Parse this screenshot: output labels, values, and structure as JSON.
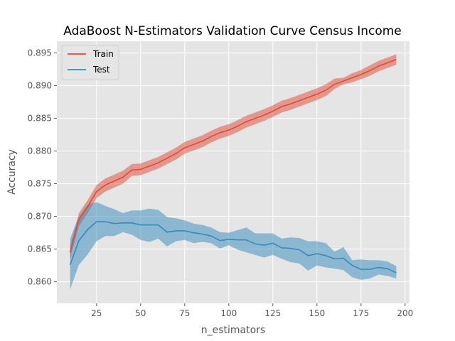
{
  "chart_data": {
    "type": "line",
    "title": "AdaBoost N-Estimators Validation Curve Census Income",
    "xlabel": "n_estimators",
    "ylabel": "Accuracy",
    "xlim": [
      2.5,
      202.5
    ],
    "ylim": [
      0.8567,
      0.8968
    ],
    "xticks": [
      25,
      50,
      75,
      100,
      125,
      150,
      175,
      200
    ],
    "yticks": [
      0.86,
      0.865,
      0.87,
      0.875,
      0.88,
      0.885,
      0.89,
      0.895
    ],
    "xtick_labels": [
      "25",
      "50",
      "75",
      "100",
      "125",
      "150",
      "175",
      "200"
    ],
    "ytick_labels": [
      "0.860",
      "0.865",
      "0.870",
      "0.875",
      "0.880",
      "0.885",
      "0.890",
      "0.895"
    ],
    "grid": true,
    "legend": "top-left",
    "x": [
      10,
      15,
      20,
      25,
      30,
      35,
      40,
      45,
      50,
      55,
      60,
      65,
      70,
      75,
      80,
      85,
      90,
      95,
      100,
      105,
      110,
      115,
      120,
      125,
      130,
      135,
      140,
      145,
      150,
      155,
      160,
      165,
      170,
      175,
      180,
      185,
      190,
      195
    ],
    "series": [
      {
        "name": "Train",
        "color": "#E24A33",
        "values": [
          0.8645,
          0.8695,
          0.8715,
          0.8738,
          0.8748,
          0.8754,
          0.876,
          0.8771,
          0.8772,
          0.8777,
          0.8782,
          0.8789,
          0.8796,
          0.8805,
          0.881,
          0.8815,
          0.8822,
          0.8828,
          0.8832,
          0.8838,
          0.8845,
          0.885,
          0.8855,
          0.8861,
          0.8868,
          0.8872,
          0.8877,
          0.8882,
          0.8887,
          0.8893,
          0.8902,
          0.8907,
          0.8912,
          0.8917,
          0.8923,
          0.893,
          0.8935,
          0.894
        ],
        "lower": [
          0.8635,
          0.8685,
          0.8705,
          0.8728,
          0.8738,
          0.8744,
          0.875,
          0.8762,
          0.8763,
          0.8768,
          0.8773,
          0.878,
          0.8787,
          0.8796,
          0.8801,
          0.8806,
          0.8813,
          0.8819,
          0.8823,
          0.8829,
          0.8836,
          0.8841,
          0.8846,
          0.8852,
          0.8859,
          0.8863,
          0.8868,
          0.8873,
          0.8878,
          0.8884,
          0.8895,
          0.8902,
          0.8905,
          0.891,
          0.8915,
          0.8922,
          0.8927,
          0.8932
        ],
        "upper": [
          0.8655,
          0.8705,
          0.8725,
          0.8748,
          0.8758,
          0.8764,
          0.877,
          0.878,
          0.8781,
          0.8786,
          0.8791,
          0.8798,
          0.8805,
          0.8814,
          0.8819,
          0.8824,
          0.8831,
          0.8837,
          0.8841,
          0.8847,
          0.8854,
          0.8859,
          0.8864,
          0.887,
          0.8877,
          0.8881,
          0.8886,
          0.8891,
          0.8896,
          0.8902,
          0.8911,
          0.8912,
          0.8919,
          0.8924,
          0.8931,
          0.8938,
          0.8943,
          0.8948
        ]
      },
      {
        "name": "Test",
        "color": "#348ABD",
        "values": [
          0.8626,
          0.8663,
          0.868,
          0.8692,
          0.8692,
          0.8689,
          0.869,
          0.869,
          0.8687,
          0.8687,
          0.8687,
          0.8676,
          0.8678,
          0.8678,
          0.8675,
          0.8673,
          0.867,
          0.8663,
          0.8665,
          0.8664,
          0.8664,
          0.8658,
          0.8656,
          0.8659,
          0.8652,
          0.8651,
          0.8649,
          0.864,
          0.8643,
          0.864,
          0.8635,
          0.8636,
          0.8625,
          0.8619,
          0.8619,
          0.8622,
          0.862,
          0.8614
        ],
        "lower": [
          0.8588,
          0.8626,
          0.8642,
          0.8662,
          0.867,
          0.867,
          0.8676,
          0.8672,
          0.8664,
          0.8661,
          0.8666,
          0.8654,
          0.8662,
          0.8664,
          0.8659,
          0.8661,
          0.8659,
          0.8651,
          0.8656,
          0.8649,
          0.8645,
          0.8641,
          0.8637,
          0.8641,
          0.8635,
          0.863,
          0.8628,
          0.8617,
          0.8625,
          0.8622,
          0.862,
          0.8618,
          0.8607,
          0.8603,
          0.8605,
          0.8611,
          0.8609,
          0.8605
        ],
        "upper": [
          0.8666,
          0.87,
          0.8718,
          0.8722,
          0.8716,
          0.8711,
          0.8705,
          0.8709,
          0.8709,
          0.8712,
          0.871,
          0.8699,
          0.8697,
          0.8694,
          0.8689,
          0.8687,
          0.8683,
          0.8676,
          0.8675,
          0.8679,
          0.8683,
          0.8674,
          0.8674,
          0.8674,
          0.8666,
          0.8668,
          0.8667,
          0.8662,
          0.8662,
          0.8659,
          0.8646,
          0.8653,
          0.8633,
          0.8634,
          0.8633,
          0.8633,
          0.8631,
          0.8624
        ]
      }
    ]
  }
}
